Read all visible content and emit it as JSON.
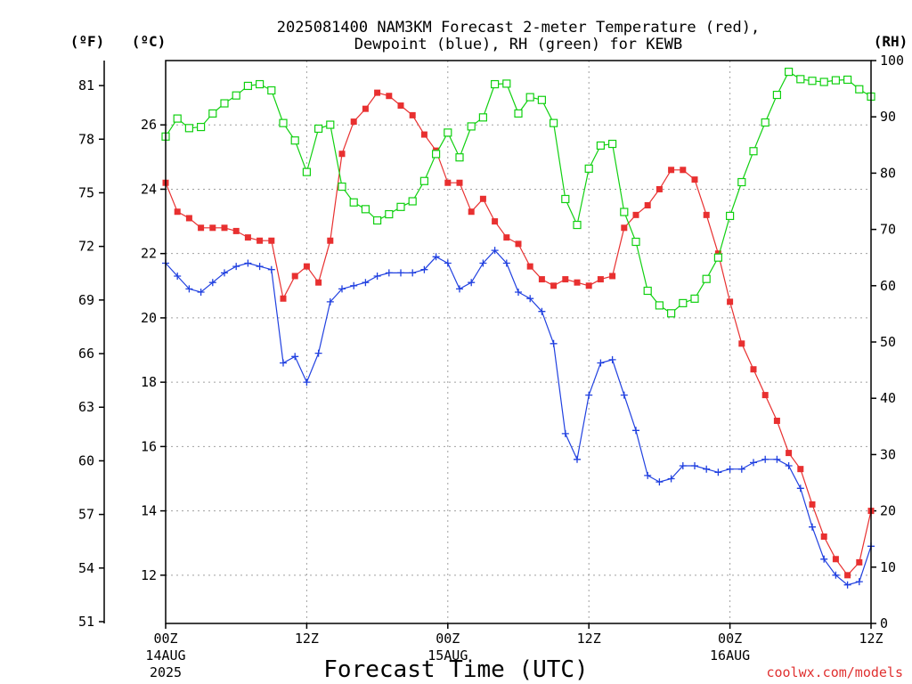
{
  "chart_data": {
    "type": "line",
    "title_line1": "2025081400 NAM3KM Forecast 2-meter Temperature (red),",
    "title_line2": "Dewpoint (blue), RH (green) for KEWB",
    "xlabel": "Forecast Time (UTC)",
    "credit": "coolwx.com/models",
    "unit_f": "(ºF)",
    "unit_c": "(ºC)",
    "unit_rh": "(RH)",
    "x_ticks": [
      {
        "hour": 0,
        "label": "00Z",
        "sub1": "14AUG",
        "sub2": "2025"
      },
      {
        "hour": 12,
        "label": "12Z",
        "sub1": "",
        "sub2": ""
      },
      {
        "hour": 24,
        "label": "00Z",
        "sub1": "15AUG",
        "sub2": ""
      },
      {
        "hour": 36,
        "label": "12Z",
        "sub1": "",
        "sub2": ""
      },
      {
        "hour": 48,
        "label": "00Z",
        "sub1": "16AUG",
        "sub2": ""
      },
      {
        "hour": 60,
        "label": "12Z",
        "sub1": "",
        "sub2": ""
      }
    ],
    "xlim": [
      0,
      60
    ],
    "celsius_axis": {
      "ylim": [
        10.5,
        28
      ],
      "ticks": [
        12,
        14,
        16,
        18,
        20,
        22,
        24,
        26
      ]
    },
    "fahrenheit_ticks": [
      51,
      54,
      57,
      60,
      63,
      66,
      69,
      72,
      75,
      78,
      81
    ],
    "rh_axis": {
      "ylim": [
        0,
        100
      ],
      "ticks": [
        0,
        10,
        20,
        30,
        40,
        50,
        60,
        70,
        80,
        90,
        100
      ]
    },
    "grid": true,
    "hours": [
      0,
      1,
      2,
      3,
      4,
      5,
      6,
      7,
      8,
      9,
      10,
      11,
      12,
      13,
      14,
      15,
      16,
      17,
      18,
      19,
      20,
      21,
      22,
      23,
      24,
      25,
      26,
      27,
      28,
      29,
      30,
      31,
      32,
      33,
      34,
      35,
      36,
      37,
      38,
      39,
      40,
      41,
      42,
      43,
      44,
      45,
      46,
      47,
      48,
      49,
      50,
      51,
      52,
      53,
      54,
      55,
      56,
      57,
      58,
      59,
      60
    ],
    "series": [
      {
        "name": "Temperature",
        "color": "#e83030",
        "marker": "filled-square",
        "axis": "celsius",
        "values": [
          24.2,
          23.3,
          23.1,
          22.8,
          22.8,
          22.8,
          22.7,
          22.5,
          22.4,
          22.4,
          20.6,
          21.3,
          21.6,
          21.1,
          22.4,
          25.1,
          26.1,
          26.5,
          27.0,
          26.9,
          26.6,
          26.3,
          25.7,
          25.2,
          24.2,
          24.2,
          23.3,
          23.7,
          23.0,
          22.5,
          22.3,
          21.6,
          21.2,
          21.0,
          21.2,
          21.1,
          21.0,
          21.2,
          21.3,
          22.8,
          23.2,
          23.5,
          24.0,
          24.6,
          24.6,
          24.3,
          23.2,
          22.0,
          20.5,
          19.2,
          18.4,
          17.6,
          16.8,
          15.8,
          15.3,
          14.2,
          13.2,
          12.5,
          12.0,
          12.4,
          14.0
        ]
      },
      {
        "name": "Dewpoint",
        "color": "#2040e0",
        "marker": "plus",
        "axis": "celsius",
        "values": [
          21.7,
          21.3,
          20.9,
          20.8,
          21.1,
          21.4,
          21.6,
          21.7,
          21.6,
          21.5,
          18.6,
          18.8,
          18.0,
          18.9,
          20.5,
          20.9,
          21.0,
          21.1,
          21.3,
          21.4,
          21.4,
          21.4,
          21.5,
          21.9,
          21.7,
          20.9,
          21.1,
          21.7,
          22.1,
          21.7,
          20.8,
          20.6,
          20.2,
          19.2,
          16.4,
          15.6,
          17.6,
          18.6,
          18.7,
          17.6,
          16.5,
          15.1,
          14.9,
          15.0,
          15.4,
          15.4,
          15.3,
          15.2,
          15.3,
          15.3,
          15.5,
          15.6,
          15.6,
          15.4,
          14.7,
          13.5,
          12.5,
          12.0,
          11.7,
          11.8,
          12.9
        ]
      },
      {
        "name": "RH",
        "color": "#10d010",
        "marker": "open-square",
        "axis": "rh",
        "values": [
          86.5,
          89.7,
          88.0,
          88.2,
          90.6,
          92.4,
          93.8,
          95.5,
          95.8,
          94.7,
          88.9,
          85.8,
          80.2,
          87.9,
          88.6,
          77.6,
          74.8,
          73.6,
          71.6,
          72.7,
          74.0,
          75.0,
          78.6,
          83.4,
          87.2,
          82.8,
          88.3,
          89.9,
          95.8,
          95.9,
          90.6,
          93.5,
          93.0,
          88.9,
          75.4,
          70.8,
          80.8,
          84.9,
          85.2,
          73.1,
          67.8,
          59.1,
          56.5,
          55.1,
          56.9,
          57.7,
          61.2,
          65.0,
          72.4,
          78.4,
          83.9,
          89.0,
          93.9,
          98.0,
          96.7,
          96.4,
          96.2,
          96.5,
          96.6,
          94.9,
          93.6
        ]
      }
    ]
  }
}
